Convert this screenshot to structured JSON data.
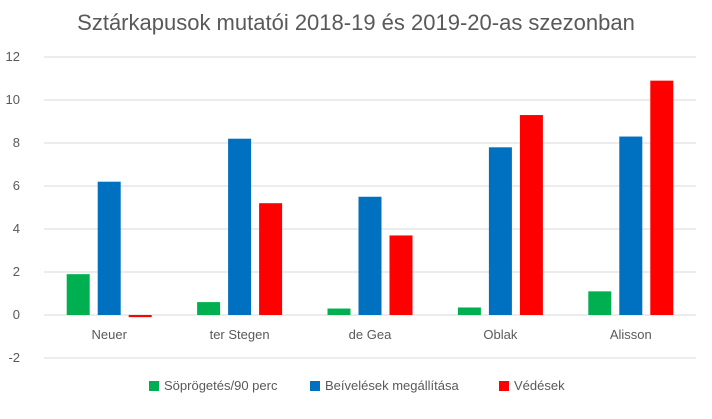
{
  "chart_data": {
    "type": "bar",
    "title": "Sztárkapusok mutatói 2018-19 és 2019-20-as szezonban",
    "xlabel": "",
    "ylabel": "",
    "categories": [
      "Neuer",
      "ter Stegen",
      "de Gea",
      "Oblak",
      "Alisson"
    ],
    "series": [
      {
        "name": "Söprögetés/90 perc",
        "color": "#00b050",
        "values": [
          1.9,
          0.6,
          0.3,
          0.35,
          1.1
        ]
      },
      {
        "name": "Beívelések megállítása",
        "color": "#0070c0",
        "values": [
          6.2,
          8.2,
          5.5,
          7.8,
          8.3
        ]
      },
      {
        "name": "Védések",
        "color": "#ff0000",
        "values": [
          -0.1,
          5.2,
          3.7,
          9.3,
          10.9
        ]
      }
    ],
    "ylim": [
      -2,
      12
    ],
    "yticks": [
      -2,
      0,
      2,
      4,
      6,
      8,
      10,
      12
    ],
    "grid": true,
    "legend_position": "bottom"
  }
}
